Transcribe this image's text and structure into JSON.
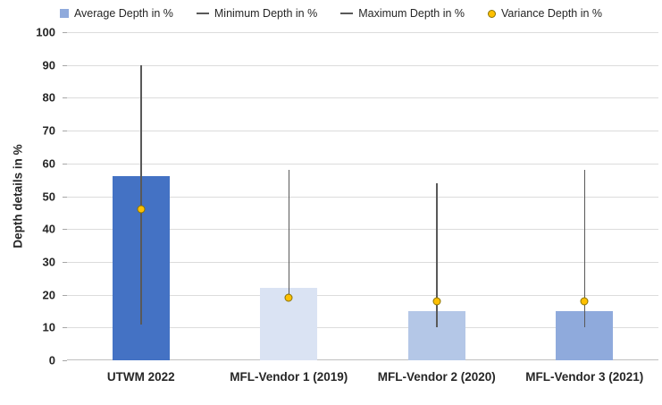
{
  "chart": {
    "legend": [
      {
        "label": "Average Depth in %",
        "marker": "square",
        "color": "#8faadc"
      },
      {
        "label": "Minimum Depth in %",
        "marker": "dash",
        "color": "#595959"
      },
      {
        "label": "Maximum Depth in %",
        "marker": "dash",
        "color": "#595959"
      },
      {
        "label": "Variance Depth in %",
        "marker": "circle",
        "color": "#ffc000"
      }
    ]
  },
  "chart_data": {
    "type": "bar",
    "title": "",
    "ylabel": "Depth details in %",
    "xlabel": "",
    "ylim": [
      0,
      100
    ],
    "ytick_step": 10,
    "grid": true,
    "legend_position": "top",
    "categories": [
      "UTWM 2022",
      "MFL-Vendor 1 (2019)",
      "MFL-Vendor 2 (2020)",
      "MFL-Vendor 3 (2021)"
    ],
    "bar_colors": [
      "#4472c4",
      "#dae3f3",
      "#b4c7e7",
      "#8faadc"
    ],
    "series": [
      {
        "name": "Average Depth in %",
        "role": "bar",
        "values": [
          56,
          22,
          15,
          15
        ]
      },
      {
        "name": "Minimum Depth in %",
        "role": "whisker-low",
        "values": [
          11,
          19,
          10,
          10
        ]
      },
      {
        "name": "Maximum Depth in %",
        "role": "whisker-high",
        "values": [
          90,
          58,
          54,
          58
        ]
      },
      {
        "name": "Variance Depth in %",
        "role": "point",
        "values": [
          46,
          19,
          18,
          18
        ],
        "color": "#ffc000"
      }
    ]
  }
}
